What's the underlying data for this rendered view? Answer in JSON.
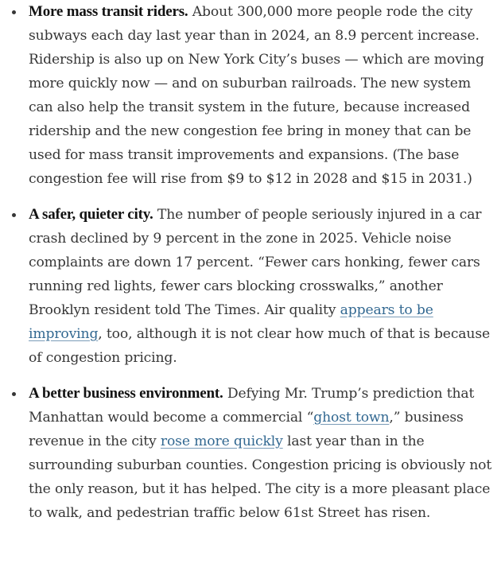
{
  "bullets": [
    {
      "lead": "More mass transit riders.",
      "text": " About 300,000 more people rode the city subways each day last year than in 2024, an 8.9 percent increase. Ridership is also up on New York City’s buses — which are moving more quickly now — and on suburban railroads. The new system can also help the transit system in the future, because increased ridership and the new congestion fee bring in money that can be used for mass transit improvements and expansions. (The base congestion fee will rise from $9 to $12 in 2028 and $15 in 2031.)"
    },
    {
      "lead": "A safer, quieter city.",
      "text_before": " The number of people seriously injured in a car crash declined by 9 percent in the zone in 2025. Vehicle noise complaints are down 17 percent. “Fewer cars honking, fewer cars running red lights, fewer cars blocking crosswalks,” another Brooklyn resident told The Times. Air quality ",
      "link": "appears to be improving",
      "text_after": ", too, although it is not clear how much of that is because of congestion pricing."
    },
    {
      "lead": "A better business environment.",
      "text_1": " Defying Mr. Trump’s prediction that Manhattan would become a commercial “",
      "link_1": "ghost town",
      "text_2": ",” business revenue in the city ",
      "link_2": "rose more quickly",
      "text_3": " last year than in the surrounding suburban counties. Congestion pricing is obviously not the only reason, but it has helped. The city is a more pleasant place to walk, and pedestrian traffic below 61st Street has risen."
    }
  ]
}
